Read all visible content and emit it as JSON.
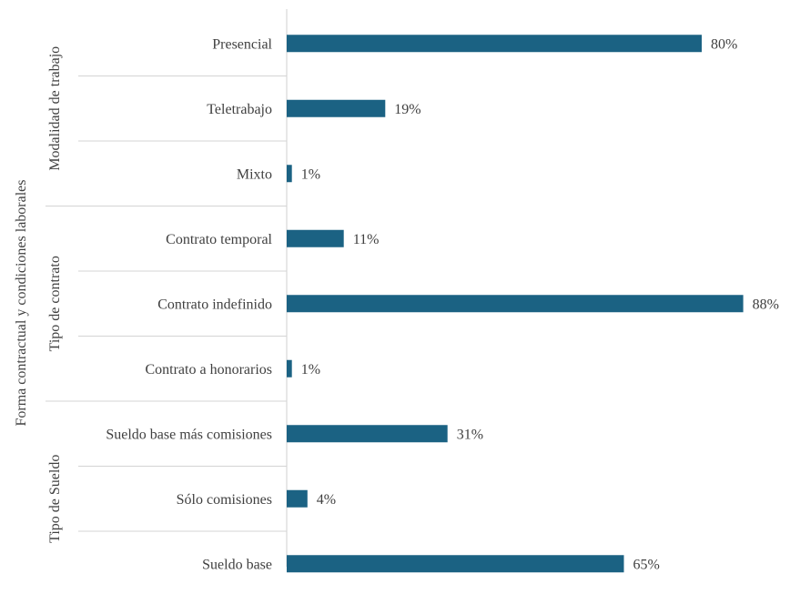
{
  "chart_data": {
    "type": "bar",
    "orientation": "horizontal",
    "y_axis_title": "Forma contractual y condiciones laborales",
    "groups": [
      {
        "name": "Modalidad de trabajo",
        "categories": [
          "Presencial",
          "Teletrabajo",
          "Mixto"
        ],
        "values": [
          80,
          19,
          1
        ],
        "value_labels": [
          "80%",
          "19%",
          "1%"
        ]
      },
      {
        "name": "Tipo de contrato",
        "categories": [
          "Contrato temporal",
          "Contrato indefinido",
          "Contrato a honorarios"
        ],
        "values": [
          11,
          88,
          1
        ],
        "value_labels": [
          "11%",
          "88%",
          "1%"
        ]
      },
      {
        "name": "Tipo de Sueldo",
        "categories": [
          "Sueldo base más comisiones",
          "Sólo comisiones",
          "Sueldo base"
        ],
        "values": [
          31,
          4,
          65
        ],
        "value_labels": [
          "31%",
          "4%",
          "65%"
        ]
      }
    ],
    "xlim": [
      0,
      100
    ],
    "grid": false,
    "legend": "none",
    "bar_color": "#1b6283"
  }
}
